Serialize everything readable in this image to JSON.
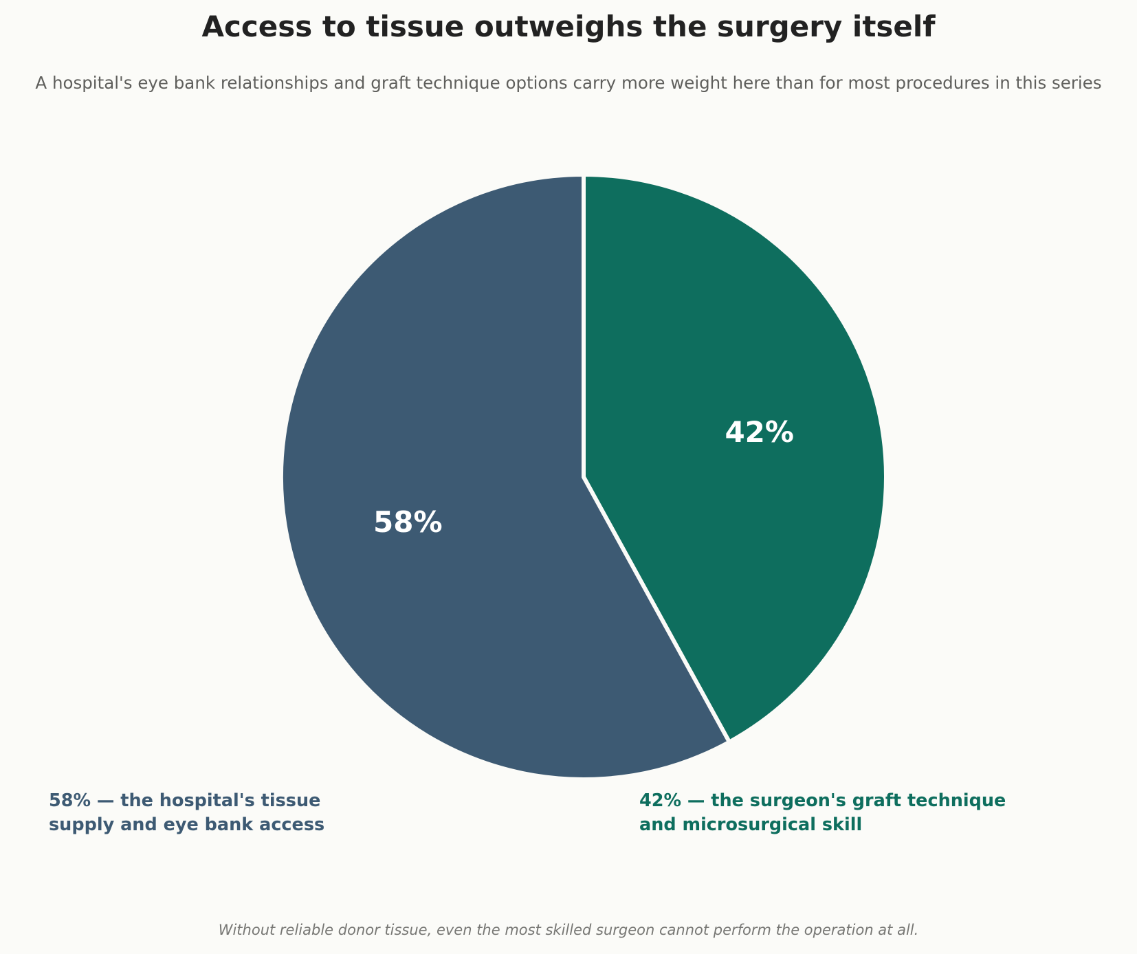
{
  "chart_data": {
    "type": "pie",
    "title": "Access to tissue outweighs the surgery itself",
    "subtitle": "A hospital's eye bank relationships and graft technique options carry more weight here than for most procedures in this series",
    "slices": [
      {
        "value": 58,
        "label": "58%",
        "callout_lines": [
          "58% — the hospital's tissue",
          "supply and eye bank access"
        ],
        "color": "#3d5a73"
      },
      {
        "value": 42,
        "label": "42%",
        "callout_lines": [
          "42% — the surgeon's graft technique",
          "and microsurgical skill"
        ],
        "color": "#0e6e5e"
      }
    ],
    "start": "top, clockwise, smaller slice on the right",
    "footnote": "Without reliable donor tissue, even the most skilled surgeon cannot perform the operation at all."
  }
}
